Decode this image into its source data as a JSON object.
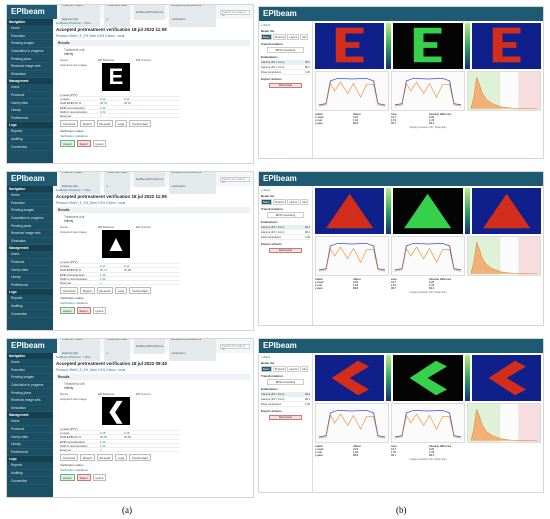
{
  "app": {
    "name": "EPIbeam"
  },
  "topbar": {
    "patient": "Phantom Case - EpibeamQA",
    "treatment": "Treatment case 1",
    "plan": "EpiBeamPhotoProto",
    "crumb_last": "accepted pretreatment verification",
    "search_placeholder": "Search for patient ID"
  },
  "sidebar": {
    "section_navigation": "Navigation",
    "items_nav": [
      "Home",
      "Execution",
      "Pending images",
      "Calculation in progress",
      "Pending plans",
      "Received image sets",
      "Simulation"
    ],
    "section_management": "Management",
    "items_mgmt": [
      "Users",
      "Protocols",
      "Gantry sites",
      "Library",
      "Preferences"
    ],
    "section_logs": "Logs",
    "items_logs": [
      "Reports",
      "Auditing",
      "Connection"
    ]
  },
  "panels_left": [
    {
      "crumb": "EpiBeam-Phantom > Plan",
      "title": "Accepted pretreatment verification 18 jul 2022 11:08",
      "protocol": "Protocol: 6MeV_E_1% 3mm 0.5% 0.5mm - local",
      "results": "Results",
      "treatment_unit_label": "Treatment unit",
      "treatment_unit": "Infinity",
      "letter": "E",
      "col_name": "Name",
      "col_ref": "EB Baseline",
      "col_cur": "EB Current",
      "acq_label": "Acquired raw image",
      "metrics": [
        {
          "k": "γ-mean (PTV)",
          "a": "",
          "b": ""
        },
        {
          "k": "γ-mean",
          "a": "0.12",
          "b": "0.12"
        },
        {
          "k": "OAR-EPID(%) %",
          "a": "99.78",
          "b": "99.81"
        },
        {
          "k": "EPID reconstruction",
          "a": "1.00",
          "b": ""
        },
        {
          "k": "OAR-C reconstruction",
          "a": "1.01",
          "b": ""
        },
        {
          "k": "Dose per",
          "a": "✓",
          "b": ""
        }
      ]
    },
    {
      "crumb": "EpiBeam-Phantom > Plan",
      "title": "Accepted pretreatment verification 18 jul 2022 11:09",
      "protocol": "Protocol: 6MeV_E_3%_3mm 0.5% 0.5mm - local",
      "results": "Results",
      "treatment_unit_label": "Treatment unit",
      "treatment_unit": "Infinity",
      "letter": "▲",
      "col_name": "Name",
      "col_ref": "EB Baseline",
      "col_cur": "EB Current",
      "acq_label": "Acquired raw image",
      "metrics": [
        {
          "k": "γ-mean (PTV)",
          "a": "",
          "b": ""
        },
        {
          "k": "γ-mean",
          "a": "0.17",
          "b": "0.11"
        },
        {
          "k": "OAR-EPID(%) %",
          "a": "99.73",
          "b": "99.85"
        },
        {
          "k": "EPID reconstruction",
          "a": "1.00",
          "b": ""
        },
        {
          "k": "OAR-C reconstruction",
          "a": "1.02",
          "b": ""
        },
        {
          "k": "Dose per",
          "a": "✓",
          "b": ""
        }
      ]
    },
    {
      "crumb": "EpiBeam-Phantom > Plan",
      "title": "Accepted pretreatment verification 18 jul 2022 09:40",
      "protocol": "Protocol: 6MeV_E_3%_3mm 0.5% 0.5mm - local",
      "results": "Results",
      "treatment_unit_label": "Treatment unit",
      "treatment_unit": "Infinity",
      "letter": "❮",
      "col_name": "Name",
      "col_ref": "EB Baseline",
      "col_cur": "EB Current",
      "acq_label": "Acquired raw image",
      "metrics": [
        {
          "k": "γ-mean (PTV)",
          "a": "",
          "b": ""
        },
        {
          "k": "γ-mean",
          "a": "0.18",
          "b": "0.18"
        },
        {
          "k": "OAR-EPID(%) %",
          "a": "99.95",
          "b": "99.86"
        },
        {
          "k": "EPID reconstruction",
          "a": "1.00",
          "b": ""
        },
        {
          "k": "OAR-C reconstruction",
          "a": "1.02",
          "b": ""
        },
        {
          "k": "Dose per",
          "a": "✓",
          "b": ""
        }
      ]
    }
  ],
  "left_buttons": [
    "Comment",
    "Report",
    "Re-send",
    "Logs",
    "Current dept"
  ],
  "verification_status": "Verification status",
  "verification_validation": "Verification validation",
  "actions": [
    "Accept",
    "Reject",
    "Ignore"
  ],
  "right": {
    "back": "« Back",
    "beam_list": "Beam list",
    "tabs": [
      "Beam",
      "Protocol",
      "Layers",
      "Info"
    ],
    "transformation": "Transformation",
    "transform_btn": "EPID processing",
    "evaluations": "Evaluations",
    "eval_rows": [
      {
        "name": "Gamma (3% / 2mm)",
        "val": "99.4"
      },
      {
        "name": "Gamma (2% / 1mm)",
        "val": "98.1"
      },
      {
        "name": "Dose comparison",
        "val": "1.00"
      }
    ],
    "export_label": "Export actions",
    "export_btn": "Recompute",
    "stats_headers": [
      "Labels",
      "Values",
      "Axes",
      "Absolute difference"
    ],
    "stats_rows": [
      [
        "γ-mean",
        "0.22",
        "0.17",
        "0.20"
      ],
      [
        "γ-max",
        "1.64",
        "1.51",
        "1.33"
      ],
      [
        "γ-pass",
        "99.8",
        "99.7",
        "99.4"
      ]
    ],
    "footer": "Imaging session info | Dosimetry",
    "shapes": [
      "E",
      "▲",
      "❮"
    ]
  },
  "captions": {
    "a": "(a)",
    "b": "(b)"
  },
  "colors": {
    "header": "#1e5b73",
    "sidebar": "#1b4f63",
    "accent": "#1f7a99",
    "green_map": "#36d04a",
    "red_map": "#d32d1c",
    "blue_map": "#10208a"
  }
}
